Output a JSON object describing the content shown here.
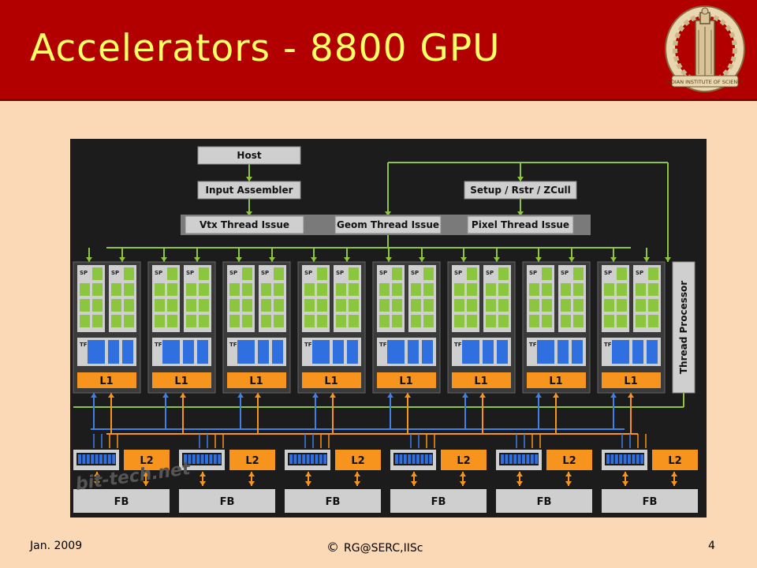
{
  "slide": {
    "title": "Accelerators - 8800 GPU",
    "footer": {
      "date": "Jan. 2009",
      "copyright_symbol": "©",
      "copyright": "RG@SERC,IISc",
      "page": "4"
    },
    "logo": {
      "text": "INDIAN INSTITUTE OF SCIENCE",
      "icon": "iisc-logo"
    }
  },
  "diagram": {
    "host": "Host",
    "input_assembler": "Input Assembler",
    "setup": "Setup / Rstr / ZCull",
    "vtx_issue": "Vtx Thread Issue",
    "geom_issue": "Geom Thread Issue",
    "pixel_issue": "Pixel Thread Issue",
    "thread_processor": "Thread Processor",
    "sp_label": "SP",
    "tf_label": "TF",
    "l1_label": "L1",
    "l2_label": "L2",
    "fb_label": "FB",
    "watermark": "bit-tech.net",
    "cluster_count": 8,
    "partition_count": 6,
    "colors": {
      "bg": "#1c1c1c",
      "sp": "#8cc63f",
      "tf": "#2f6fe0",
      "l1": "#f7941d",
      "box": "#cfcfcf",
      "line": "#8cc63f",
      "arrow_blue": "#3f7fe8",
      "arrow_orange": "#f7941d"
    }
  }
}
